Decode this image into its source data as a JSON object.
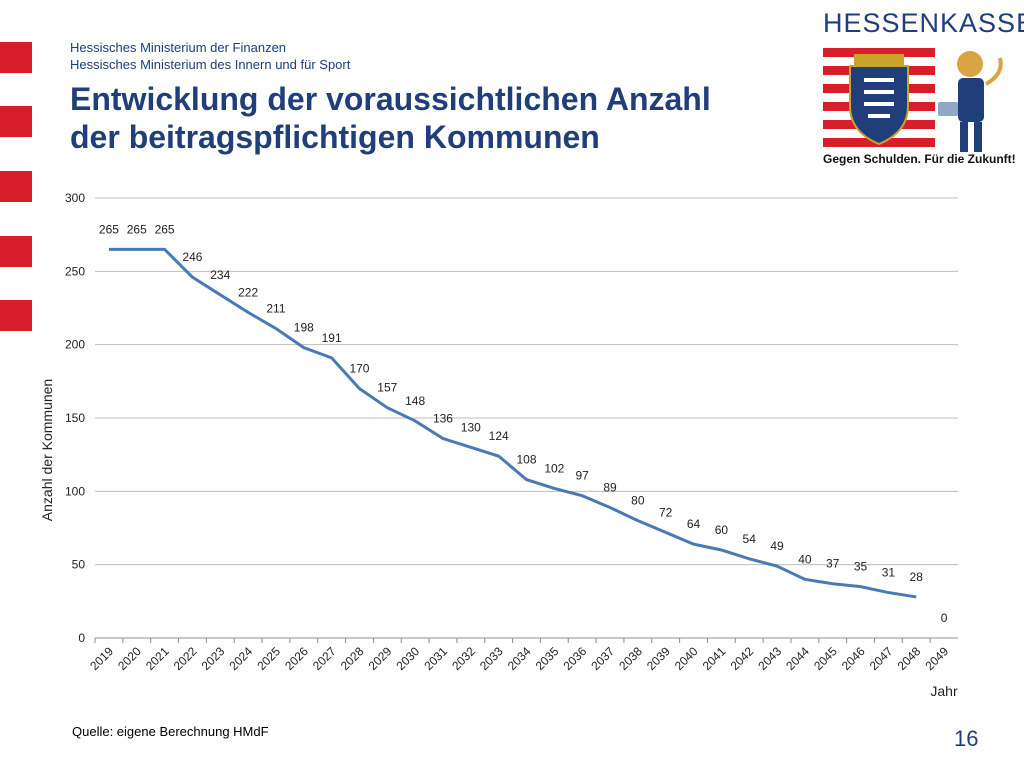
{
  "header": {
    "ministry_1": "Hessisches Ministerium der Finanzen",
    "ministry_2": "Hessisches Ministerium des Innern und für Sport",
    "title_line_1": "Entwicklung der voraussichtlichen Anzahl",
    "title_line_2": "der beitragspflichtigen Kommunen"
  },
  "logo": {
    "name": "HESSENKASSE",
    "slogan": "Gegen Schulden. Für die Zukunft!",
    "colors": {
      "red": "#d81e2b",
      "blue": "#1f3e7a"
    }
  },
  "footer": {
    "source": "Quelle: eigene Berechnung HMdF",
    "page_number": "16"
  },
  "chart_data": {
    "type": "line",
    "title": "",
    "xlabel": "Jahr",
    "ylabel": "Anzahl der Kommunen",
    "ylim": [
      0,
      300
    ],
    "yticks": [
      0,
      50,
      100,
      150,
      200,
      250,
      300
    ],
    "grid": true,
    "line_color": "#4a7ab5",
    "categories": [
      "2019",
      "2020",
      "2021",
      "2022",
      "2023",
      "2024",
      "2025",
      "2026",
      "2027",
      "2028",
      "2029",
      "2030",
      "2031",
      "2032",
      "2033",
      "2034",
      "2035",
      "2036",
      "2037",
      "2038",
      "2039",
      "2040",
      "2041",
      "2042",
      "2043",
      "2044",
      "2045",
      "2046",
      "2047",
      "2048",
      "2049"
    ],
    "values": [
      265,
      265,
      265,
      246,
      234,
      222,
      211,
      198,
      191,
      170,
      157,
      148,
      136,
      130,
      124,
      108,
      102,
      97,
      89,
      80,
      72,
      64,
      60,
      54,
      49,
      40,
      37,
      35,
      31,
      28,
      0
    ],
    "line_ends_at": "2048"
  }
}
